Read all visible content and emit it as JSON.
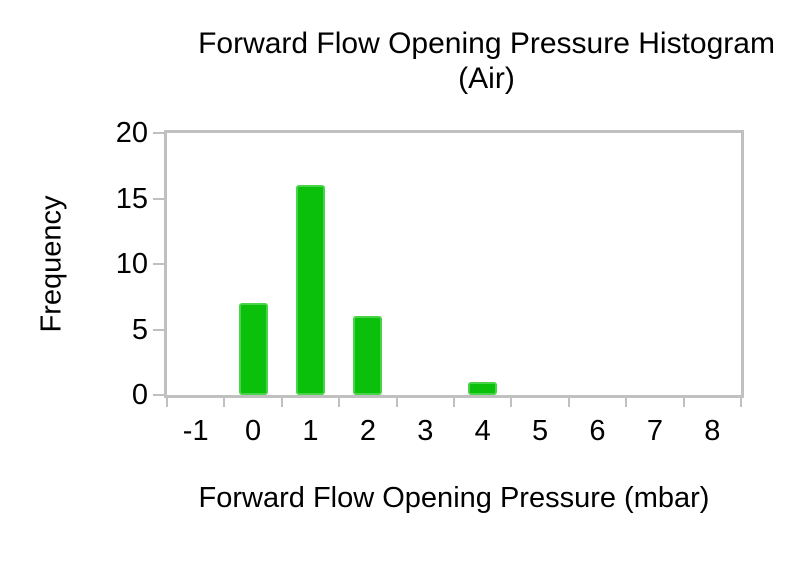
{
  "chart_data": {
    "type": "bar",
    "title": "Forward Flow Opening Pressure Histogram (Air)",
    "title_lines": [
      "Forward Flow Opening Pressure Histogram",
      "(Air)"
    ],
    "xlabel": "Forward Flow Opening Pressure (mbar)",
    "ylabel": "Frequency",
    "categories": [
      "-1",
      "0",
      "1",
      "2",
      "3",
      "4",
      "5",
      "6",
      "7",
      "8"
    ],
    "values": [
      0,
      7,
      16,
      6,
      0,
      1,
      0,
      0,
      0,
      0
    ],
    "yticks": [
      0,
      5,
      10,
      15,
      20
    ],
    "ylim": [
      0,
      20
    ],
    "grid": false,
    "legend_visible": false,
    "colors": {
      "bar_fill": "#0bc00b",
      "bar_border": "#49d349",
      "axis_frame": "#c0c0c0",
      "text": "#000000",
      "background": "#ffffff"
    }
  }
}
